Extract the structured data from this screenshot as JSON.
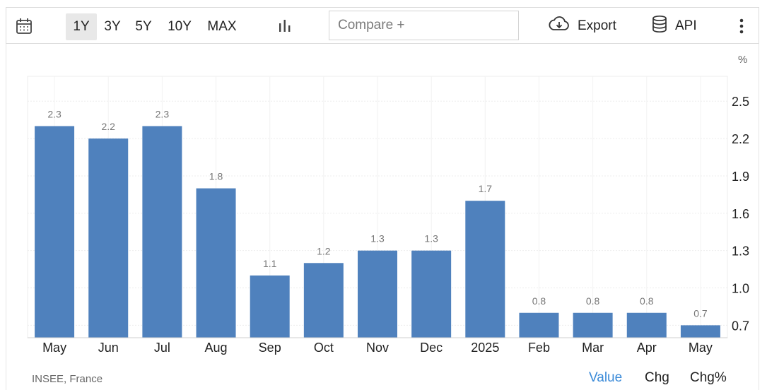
{
  "toolbar": {
    "calendar_icon": "calendar-icon",
    "ranges": [
      "1Y",
      "3Y",
      "5Y",
      "10Y",
      "MAX"
    ],
    "active_range": "1Y",
    "chart_type_icon": "bar-chart-icon",
    "compare_placeholder": "Compare +",
    "export_label": "Export",
    "export_icon": "cloud-download-icon",
    "api_label": "API",
    "api_icon": "database-icon",
    "more_icon": "vertical-dots-icon"
  },
  "chart_data": {
    "type": "bar",
    "categories": [
      "May",
      "Jun",
      "Jul",
      "Aug",
      "Sep",
      "Oct",
      "Nov",
      "Dec",
      "2025",
      "Feb",
      "Mar",
      "Apr",
      "May"
    ],
    "values": [
      2.3,
      2.2,
      2.3,
      1.8,
      1.1,
      1.2,
      1.3,
      1.3,
      1.7,
      0.8,
      0.8,
      0.8,
      0.7
    ],
    "data_labels": [
      "2.3",
      "2.2",
      "2.3",
      "1.8",
      "1.1",
      "1.2",
      "1.3",
      "1.3",
      "1.7",
      "0.8",
      "0.8",
      "0.8",
      "0.7"
    ],
    "unit": "%",
    "y_ticks": [
      "2.5",
      "2.2",
      "1.9",
      "1.6",
      "1.3",
      "1.0",
      "0.7"
    ],
    "ylim": [
      0.6,
      2.7
    ],
    "y_axis_side": "right",
    "grid": true,
    "bar_color": "#4f81bd"
  },
  "footer": {
    "source": "INSEE, France",
    "modes": [
      "Value",
      "Chg",
      "Chg%"
    ],
    "active_mode": "Value",
    "active_color": "#3a8ad8"
  }
}
